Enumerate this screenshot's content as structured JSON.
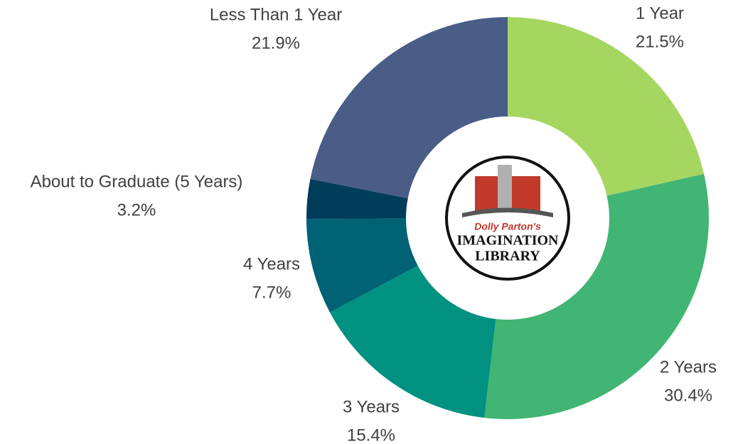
{
  "chart_data": {
    "type": "donut",
    "categories": [
      "1 Year",
      "2 Years",
      "3 Years",
      "4 Years",
      "About to Graduate (5 Years)",
      "Less Than 1 Year"
    ],
    "values": [
      21.5,
      30.4,
      15.4,
      7.7,
      3.2,
      21.9
    ],
    "value_labels": [
      "21.5%",
      "30.4%",
      "15.4%",
      "7.7%",
      "3.2%",
      "21.9%"
    ],
    "colors": [
      "#a5d65f",
      "#41b573",
      "#009180",
      "#006275",
      "#003d5b",
      "#4a5d87"
    ],
    "logo": {
      "line1": "Dolly Parton's",
      "line2": "IMAGINATION",
      "line3": "LIBRARY"
    }
  }
}
